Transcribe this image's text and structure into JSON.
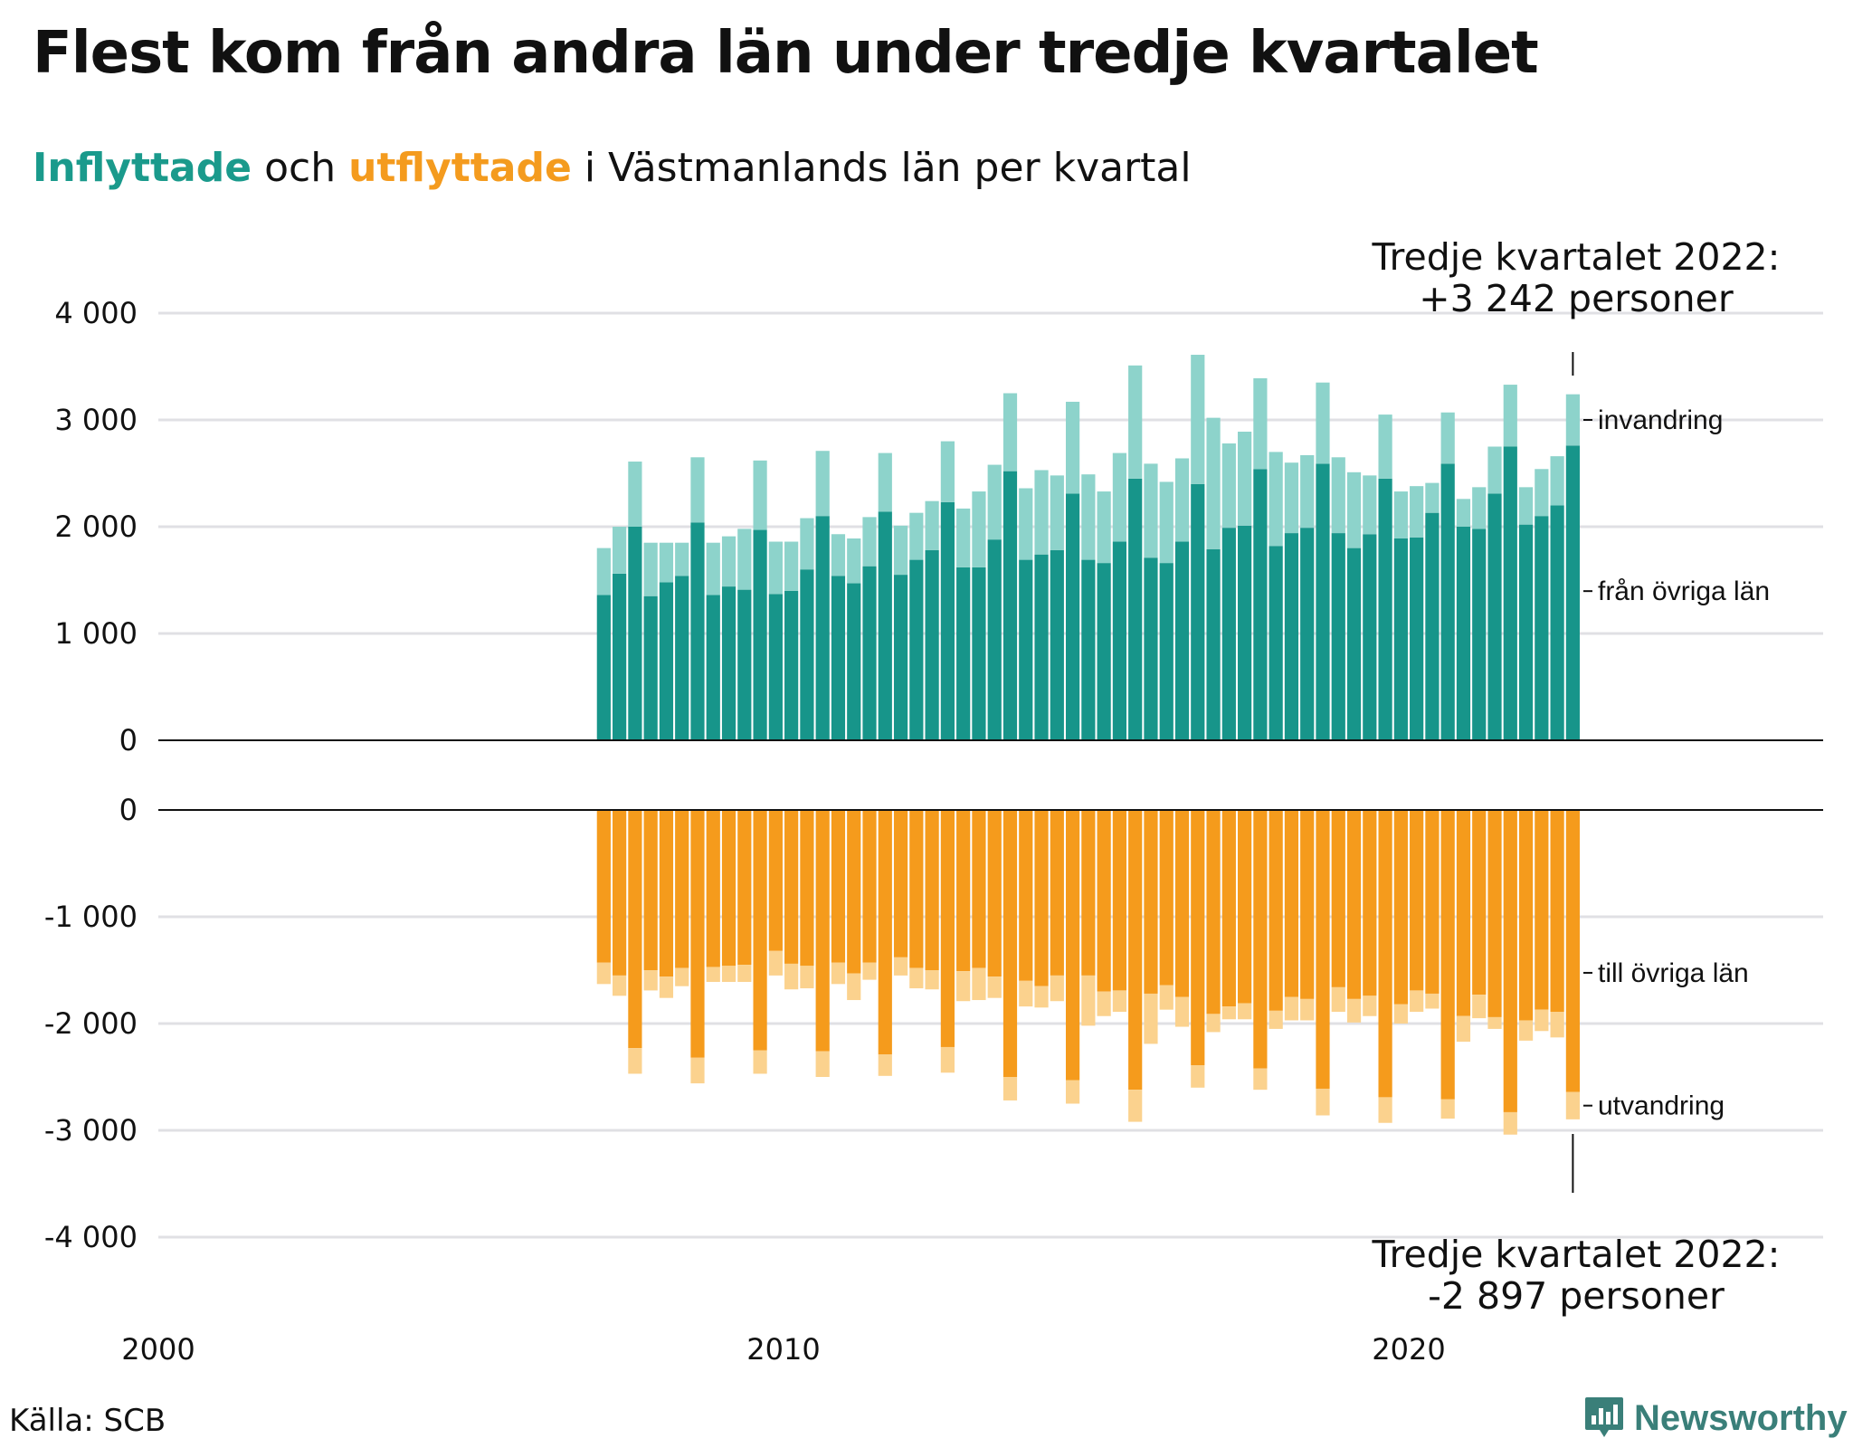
{
  "title": "Flest kom från andra län under tredje kvartalet",
  "subtitle": {
    "in_word": "Inflyttade",
    "mid": " och ",
    "out_word": "utflyttade",
    "rest": " i Västmanlands län per kvartal"
  },
  "source": "Källa: SCB",
  "brand": "Newsworthy",
  "colors": {
    "in_domestic": "#17958a",
    "in_immigration": "#8dd3cb",
    "out_domestic": "#f59b1c",
    "out_emigration": "#fbd28e",
    "grid": "#e0e0e4",
    "axis": "#111111"
  },
  "chart_data": [
    {
      "type": "bar",
      "stacked": true,
      "x_start": "2007-Q1",
      "x_end": "2022-Q3",
      "ylim": [
        0,
        4000
      ],
      "y_ticks": [
        "0",
        "1 000",
        "2 000",
        "3 000",
        "4 000"
      ],
      "x_ticks": [
        "2000",
        "2010",
        "2020"
      ],
      "series": [
        {
          "name": "från övriga län",
          "values": [
            1360,
            1560,
            2000,
            1350,
            1480,
            1540,
            2040,
            1360,
            1440,
            1410,
            1970,
            1370,
            1400,
            1600,
            2100,
            1540,
            1470,
            1630,
            2140,
            1550,
            1690,
            1780,
            2230,
            1620,
            1620,
            1880,
            2520,
            1690,
            1740,
            1780,
            2310,
            1690,
            1660,
            1860,
            2450,
            1710,
            1660,
            1860,
            2400,
            1790,
            1990,
            2010,
            2540,
            1820,
            1940,
            1990,
            2590,
            1940,
            1800,
            1930,
            2450,
            1890,
            1900,
            2130,
            2590,
            2000,
            1980,
            2310,
            2750,
            2020,
            2100,
            2200,
            2760
          ]
        },
        {
          "name": "invandring",
          "values": [
            440,
            440,
            610,
            500,
            370,
            310,
            610,
            490,
            470,
            570,
            650,
            490,
            460,
            480,
            610,
            390,
            420,
            460,
            550,
            460,
            440,
            460,
            570,
            550,
            710,
            700,
            730,
            670,
            790,
            700,
            860,
            800,
            670,
            830,
            1060,
            880,
            760,
            780,
            1210,
            1230,
            790,
            880,
            850,
            880,
            660,
            680,
            760,
            710,
            710,
            550,
            600,
            440,
            480,
            280,
            480,
            260,
            390,
            440,
            580,
            350,
            440,
            460,
            480
          ]
        },
        {
          "name": "annotation",
          "values": [],
          "label": "Tredje kvartalet 2022:",
          "value_text": "+3 242 personer"
        }
      ]
    },
    {
      "type": "bar",
      "stacked": true,
      "x_start": "2007-Q1",
      "x_end": "2022-Q3",
      "ylim": [
        -4000,
        0
      ],
      "y_ticks": [
        "0",
        "-1 000",
        "-2 000",
        "-3 000",
        "-4 000"
      ],
      "series": [
        {
          "name": "till övriga län",
          "values": [
            -1430,
            -1550,
            -2230,
            -1500,
            -1560,
            -1480,
            -2320,
            -1470,
            -1460,
            -1450,
            -2250,
            -1320,
            -1440,
            -1460,
            -2260,
            -1430,
            -1530,
            -1430,
            -2290,
            -1380,
            -1480,
            -1500,
            -2220,
            -1510,
            -1480,
            -1560,
            -2500,
            -1600,
            -1650,
            -1550,
            -2530,
            -1550,
            -1700,
            -1690,
            -2620,
            -1720,
            -1640,
            -1750,
            -2390,
            -1910,
            -1840,
            -1810,
            -2420,
            -1880,
            -1750,
            -1770,
            -2610,
            -1660,
            -1770,
            -1740,
            -2690,
            -1820,
            -1690,
            -1720,
            -2710,
            -1930,
            -1730,
            -1940,
            -2830,
            -1970,
            -1870,
            -1890,
            -2640
          ]
        },
        {
          "name": "utvandring",
          "values": [
            -200,
            -190,
            -240,
            -190,
            -200,
            -170,
            -240,
            -140,
            -150,
            -160,
            -220,
            -230,
            -240,
            -210,
            -240,
            -200,
            -250,
            -160,
            -200,
            -170,
            -190,
            -180,
            -240,
            -280,
            -300,
            -200,
            -220,
            -240,
            -200,
            -240,
            -220,
            -470,
            -230,
            -200,
            -300,
            -470,
            -230,
            -280,
            -210,
            -170,
            -120,
            -150,
            -200,
            -170,
            -220,
            -200,
            -250,
            -230,
            -220,
            -190,
            -240,
            -180,
            -200,
            -140,
            -180,
            -240,
            -220,
            -110,
            -210,
            -190,
            -200,
            -240,
            -257
          ]
        },
        {
          "name": "annotation",
          "values": [],
          "label": "Tredje kvartalet 2022:",
          "value_text": "-2 897 personer"
        }
      ]
    }
  ]
}
